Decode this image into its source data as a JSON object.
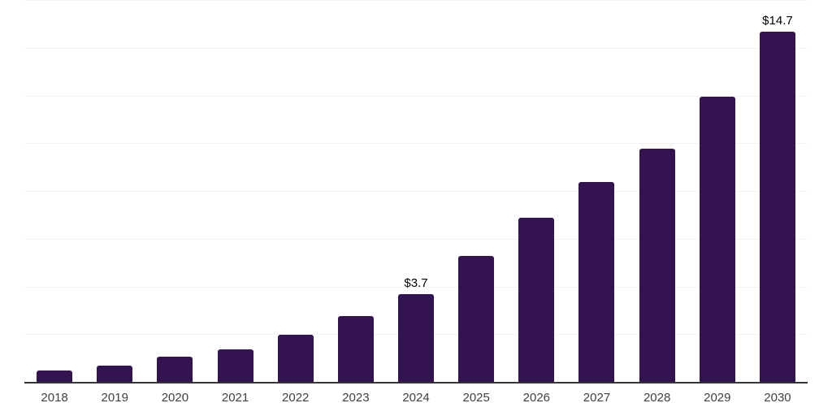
{
  "chart_data": {
    "type": "bar",
    "categories": [
      "2018",
      "2019",
      "2020",
      "2021",
      "2022",
      "2023",
      "2024",
      "2025",
      "2026",
      "2027",
      "2028",
      "2029",
      "2030"
    ],
    "values": [
      0.5,
      0.7,
      1.1,
      1.4,
      2.0,
      2.8,
      3.7,
      5.3,
      6.9,
      8.4,
      9.8,
      12.0,
      14.7
    ],
    "data_labels": {
      "2024": "$3.7",
      "2030": "$14.7"
    },
    "value_prefix": "$",
    "ylim": [
      0,
      16
    ],
    "gridline_step": 2,
    "grid": true,
    "legend": false,
    "y_axis_tick_labels": false,
    "colors": {
      "bar": "#341450",
      "gridline": "#f2f2f2",
      "axis_line": "#333333",
      "x_tick_label": "#404040",
      "data_label": "#000000",
      "background": "#ffffff"
    }
  }
}
